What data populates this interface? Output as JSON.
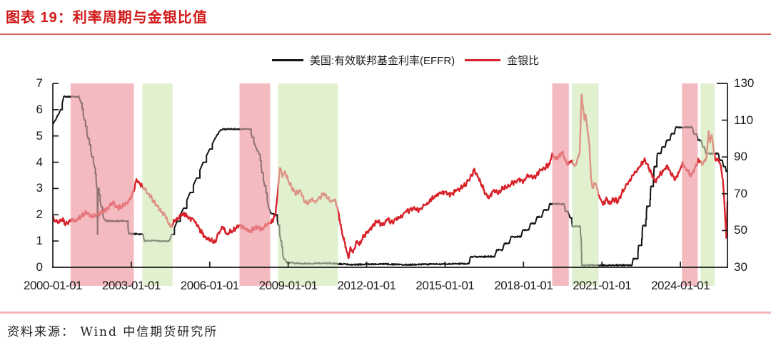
{
  "header": {
    "title": "图表 19：利率周期与金银比值"
  },
  "legend": [
    {
      "label": "美国:有效联邦基金利率(EFFR)",
      "color": "#141414"
    },
    {
      "label": "金银比",
      "color": "#d8232a"
    }
  ],
  "footer": {
    "source": "资料来源： Wind 中信期货研究所"
  },
  "colors": {
    "title": "#d11919",
    "title_rule": "#d66060",
    "footer_rule": "#f2b5b5",
    "effr_line": "#141414",
    "ratio_line": "#d8232a",
    "cut_band": "#f3bbbf",
    "hold_band": "#e1f0cf",
    "axis": "#1a1a1a"
  },
  "chart_data": {
    "type": "line",
    "title": "利率周期与金银比值",
    "x_unit": "years since 2000-01-01",
    "x_range": [
      0,
      25.8
    ],
    "x_ticks": [
      {
        "t": 0,
        "label": "2000-01-01"
      },
      {
        "t": 3,
        "label": "2003-01-01"
      },
      {
        "t": 6,
        "label": "2006-01-01"
      },
      {
        "t": 9,
        "label": "2009-01-01"
      },
      {
        "t": 12,
        "label": "2012-01-01"
      },
      {
        "t": 15,
        "label": "2015-01-01"
      },
      {
        "t": 18,
        "label": "2018-01-01"
      },
      {
        "t": 21,
        "label": "2021-01-01"
      },
      {
        "t": 24,
        "label": "2024-01-01"
      }
    ],
    "left_axis": {
      "range": [
        0,
        7
      ],
      "ticks": [
        0,
        1,
        2,
        3,
        4,
        5,
        6,
        7
      ]
    },
    "right_axis": {
      "range": [
        30,
        130
      ],
      "ticks": [
        30,
        50,
        70,
        90,
        110,
        130
      ]
    },
    "bands": [
      {
        "kind": "cut",
        "t0": 0.68,
        "t1": 3.1
      },
      {
        "kind": "hold",
        "t0": 3.43,
        "t1": 4.58
      },
      {
        "kind": "cut",
        "t0": 7.14,
        "t1": 8.31
      },
      {
        "kind": "hold",
        "t0": 8.61,
        "t1": 10.9
      },
      {
        "kind": "cut",
        "t0": 19.1,
        "t1": 19.73
      },
      {
        "kind": "hold",
        "t0": 19.86,
        "t1": 20.87
      },
      {
        "kind": "cut",
        "t0": 24.06,
        "t1": 24.66
      },
      {
        "kind": "hold",
        "t0": 24.77,
        "t1": 25.31
      }
    ],
    "series": [
      {
        "name": "美国:有效联邦基金利率(EFFR)",
        "axis": "left",
        "color": "#141414",
        "style": "step",
        "points": [
          [
            0,
            5.45
          ],
          [
            0.1,
            5.6
          ],
          [
            0.2,
            5.8
          ],
          [
            0.3,
            6.0
          ],
          [
            0.42,
            6.5
          ],
          [
            1.0,
            6.5
          ],
          [
            1.08,
            6.25
          ],
          [
            1.2,
            5.6
          ],
          [
            1.35,
            4.9
          ],
          [
            1.5,
            4.2
          ],
          [
            1.6,
            3.8
          ],
          [
            1.68,
            3.05
          ],
          [
            1.7,
            3.0
          ],
          [
            1.71,
            1.25
          ],
          [
            1.73,
            3.0
          ],
          [
            1.85,
            2.3
          ],
          [
            1.95,
            1.85
          ],
          [
            2.05,
            1.76
          ],
          [
            2.85,
            1.76
          ],
          [
            2.9,
            1.28
          ],
          [
            3.45,
            1.26
          ],
          [
            3.5,
            1.01
          ],
          [
            4.45,
            1.0
          ],
          [
            4.55,
            1.25
          ],
          [
            4.75,
            1.75
          ],
          [
            5.0,
            2.25
          ],
          [
            5.25,
            2.85
          ],
          [
            5.5,
            3.4
          ],
          [
            5.75,
            4.0
          ],
          [
            6.0,
            4.5
          ],
          [
            6.2,
            4.9
          ],
          [
            6.4,
            5.2
          ],
          [
            6.5,
            5.26
          ],
          [
            7.55,
            5.26
          ],
          [
            7.62,
            4.95
          ],
          [
            7.75,
            4.6
          ],
          [
            7.9,
            4.3
          ],
          [
            8.0,
            3.6
          ],
          [
            8.1,
            3.1
          ],
          [
            8.25,
            2.3
          ],
          [
            8.35,
            2.05
          ],
          [
            8.55,
            2.0
          ],
          [
            8.62,
            1.6
          ],
          [
            8.72,
            1.0
          ],
          [
            8.82,
            0.35
          ],
          [
            8.95,
            0.18
          ],
          [
            9.5,
            0.14
          ],
          [
            10.5,
            0.16
          ],
          [
            11.5,
            0.1
          ],
          [
            12.5,
            0.13
          ],
          [
            13.5,
            0.1
          ],
          [
            14.5,
            0.12
          ],
          [
            15.5,
            0.13
          ],
          [
            15.92,
            0.14
          ],
          [
            15.97,
            0.4
          ],
          [
            16.9,
            0.41
          ],
          [
            16.97,
            0.66
          ],
          [
            17.2,
            0.66
          ],
          [
            17.27,
            0.91
          ],
          [
            17.45,
            0.91
          ],
          [
            17.52,
            1.16
          ],
          [
            17.9,
            1.16
          ],
          [
            17.97,
            1.41
          ],
          [
            18.2,
            1.42
          ],
          [
            18.27,
            1.67
          ],
          [
            18.45,
            1.67
          ],
          [
            18.52,
            1.92
          ],
          [
            18.7,
            1.92
          ],
          [
            18.77,
            2.18
          ],
          [
            18.95,
            2.18
          ],
          [
            19.0,
            2.41
          ],
          [
            19.55,
            2.41
          ],
          [
            19.6,
            2.14
          ],
          [
            19.7,
            2.13
          ],
          [
            19.77,
            1.9
          ],
          [
            19.83,
            1.88
          ],
          [
            19.87,
            1.56
          ],
          [
            20.15,
            1.56
          ],
          [
            20.2,
            1.1
          ],
          [
            20.23,
            0.08
          ],
          [
            22.15,
            0.08
          ],
          [
            22.2,
            0.33
          ],
          [
            22.36,
            0.33
          ],
          [
            22.4,
            0.83
          ],
          [
            22.5,
            0.83
          ],
          [
            22.56,
            1.58
          ],
          [
            22.66,
            1.58
          ],
          [
            22.72,
            2.33
          ],
          [
            22.82,
            2.33
          ],
          [
            22.87,
            3.08
          ],
          [
            22.95,
            3.08
          ],
          [
            23.0,
            3.83
          ],
          [
            23.08,
            3.83
          ],
          [
            23.12,
            4.33
          ],
          [
            23.25,
            4.33
          ],
          [
            23.3,
            4.58
          ],
          [
            23.42,
            4.58
          ],
          [
            23.47,
            4.83
          ],
          [
            23.6,
            4.83
          ],
          [
            23.65,
            5.08
          ],
          [
            23.77,
            5.08
          ],
          [
            23.82,
            5.33
          ],
          [
            24.45,
            5.33
          ],
          [
            24.52,
            5.08
          ],
          [
            24.62,
            5.08
          ],
          [
            24.68,
            4.83
          ],
          [
            24.8,
            4.83
          ],
          [
            24.86,
            4.58
          ],
          [
            24.92,
            4.58
          ],
          [
            24.97,
            4.33
          ],
          [
            25.45,
            4.33
          ],
          [
            25.5,
            4.08
          ],
          [
            25.6,
            4.08
          ],
          [
            25.65,
            3.83
          ],
          [
            25.72,
            3.83
          ],
          [
            25.75,
            3.65
          ],
          [
            25.8,
            3.65
          ]
        ]
      },
      {
        "name": "金银比",
        "axis": "right",
        "color": "#d8232a",
        "style": "line",
        "points": [
          [
            0,
            57
          ],
          [
            0.2,
            54
          ],
          [
            0.35,
            56
          ],
          [
            0.5,
            53.5
          ],
          [
            0.7,
            56
          ],
          [
            0.9,
            55
          ],
          [
            1.1,
            58
          ],
          [
            1.3,
            60
          ],
          [
            1.5,
            57
          ],
          [
            1.7,
            59
          ],
          [
            1.9,
            60
          ],
          [
            2.1,
            62
          ],
          [
            2.3,
            65.5
          ],
          [
            2.5,
            62
          ],
          [
            2.7,
            64
          ],
          [
            2.9,
            66
          ],
          [
            3.05,
            70
          ],
          [
            3.2,
            78
          ],
          [
            3.35,
            75
          ],
          [
            3.5,
            73
          ],
          [
            3.65,
            70
          ],
          [
            3.8,
            67
          ],
          [
            3.95,
            64
          ],
          [
            4.1,
            61
          ],
          [
            4.3,
            58
          ],
          [
            4.5,
            52
          ],
          [
            4.65,
            55
          ],
          [
            4.8,
            57
          ],
          [
            5.0,
            59.5
          ],
          [
            5.2,
            57
          ],
          [
            5.4,
            55.5
          ],
          [
            5.6,
            51
          ],
          [
            5.8,
            47
          ],
          [
            6.0,
            45
          ],
          [
            6.2,
            43.5
          ],
          [
            6.35,
            49
          ],
          [
            6.5,
            52
          ],
          [
            6.65,
            48
          ],
          [
            6.8,
            49.5
          ],
          [
            7.0,
            51
          ],
          [
            7.15,
            53
          ],
          [
            7.35,
            51
          ],
          [
            7.55,
            49.5
          ],
          [
            7.75,
            52
          ],
          [
            7.95,
            50.5
          ],
          [
            8.15,
            52.5
          ],
          [
            8.35,
            54
          ],
          [
            8.5,
            58
          ],
          [
            8.6,
            70
          ],
          [
            8.68,
            84
          ],
          [
            8.78,
            79
          ],
          [
            8.88,
            82
          ],
          [
            9.0,
            77
          ],
          [
            9.15,
            73
          ],
          [
            9.3,
            70
          ],
          [
            9.45,
            72
          ],
          [
            9.6,
            66
          ],
          [
            9.75,
            64.5
          ],
          [
            9.9,
            67
          ],
          [
            10.05,
            65
          ],
          [
            10.2,
            68
          ],
          [
            10.35,
            70
          ],
          [
            10.5,
            67.5
          ],
          [
            10.65,
            65.5
          ],
          [
            10.8,
            67
          ],
          [
            10.9,
            61
          ],
          [
            11.05,
            50
          ],
          [
            11.15,
            44
          ],
          [
            11.25,
            38
          ],
          [
            11.3,
            35
          ],
          [
            11.38,
            41
          ],
          [
            11.48,
            38
          ],
          [
            11.6,
            44
          ],
          [
            11.72,
            42
          ],
          [
            11.85,
            46
          ],
          [
            12.0,
            49
          ],
          [
            12.2,
            52
          ],
          [
            12.4,
            55
          ],
          [
            12.6,
            53
          ],
          [
            12.8,
            56
          ],
          [
            13.0,
            54.5
          ],
          [
            13.25,
            57
          ],
          [
            13.5,
            60
          ],
          [
            13.75,
            62
          ],
          [
            14.0,
            61
          ],
          [
            14.25,
            64
          ],
          [
            14.5,
            67.5
          ],
          [
            14.75,
            70
          ],
          [
            15.0,
            71
          ],
          [
            15.2,
            69.5
          ],
          [
            15.45,
            72
          ],
          [
            15.7,
            74
          ],
          [
            15.95,
            78
          ],
          [
            16.1,
            83
          ],
          [
            16.25,
            79
          ],
          [
            16.4,
            75
          ],
          [
            16.55,
            70
          ],
          [
            16.7,
            68
          ],
          [
            16.85,
            72
          ],
          [
            17.0,
            70.5
          ],
          [
            17.2,
            72.5
          ],
          [
            17.4,
            74
          ],
          [
            17.6,
            76
          ],
          [
            17.8,
            78
          ],
          [
            18.0,
            77
          ],
          [
            18.2,
            80
          ],
          [
            18.4,
            79
          ],
          [
            18.6,
            82
          ],
          [
            18.8,
            84
          ],
          [
            19.0,
            86
          ],
          [
            19.1,
            92
          ],
          [
            19.2,
            89
          ],
          [
            19.35,
            90
          ],
          [
            19.5,
            93
          ],
          [
            19.6,
            88
          ],
          [
            19.72,
            86
          ],
          [
            19.85,
            88
          ],
          [
            19.95,
            85
          ],
          [
            20.05,
            88
          ],
          [
            20.15,
            93
          ],
          [
            20.22,
            124
          ],
          [
            20.28,
            117
          ],
          [
            20.33,
            110
          ],
          [
            20.38,
            113
          ],
          [
            20.45,
            104
          ],
          [
            20.52,
            97
          ],
          [
            20.58,
            78
          ],
          [
            20.65,
            73
          ],
          [
            20.75,
            76
          ],
          [
            20.85,
            70
          ],
          [
            20.95,
            67
          ],
          [
            21.05,
            64
          ],
          [
            21.15,
            67
          ],
          [
            21.3,
            64.5
          ],
          [
            21.45,
            67
          ],
          [
            21.6,
            66
          ],
          [
            21.75,
            70
          ],
          [
            21.9,
            74
          ],
          [
            22.05,
            77
          ],
          [
            22.2,
            80
          ],
          [
            22.35,
            83
          ],
          [
            22.5,
            86
          ],
          [
            22.65,
            88.5
          ],
          [
            22.8,
            84
          ],
          [
            22.95,
            79
          ],
          [
            23.05,
            77
          ],
          [
            23.2,
            80
          ],
          [
            23.35,
            83
          ],
          [
            23.5,
            85.5
          ],
          [
            23.65,
            81
          ],
          [
            23.8,
            78
          ],
          [
            23.95,
            82
          ],
          [
            24.1,
            86.5
          ],
          [
            24.25,
            83
          ],
          [
            24.4,
            79.5
          ],
          [
            24.55,
            84
          ],
          [
            24.7,
            88.5
          ],
          [
            24.85,
            86
          ],
          [
            25.0,
            90
          ],
          [
            25.08,
            104
          ],
          [
            25.14,
            98
          ],
          [
            25.2,
            102
          ],
          [
            25.28,
            92
          ],
          [
            25.35,
            88
          ],
          [
            25.45,
            89
          ],
          [
            25.55,
            85
          ],
          [
            25.62,
            78
          ],
          [
            25.68,
            66
          ],
          [
            25.72,
            55
          ],
          [
            25.76,
            46
          ],
          [
            25.8,
            66
          ]
        ]
      }
    ]
  }
}
